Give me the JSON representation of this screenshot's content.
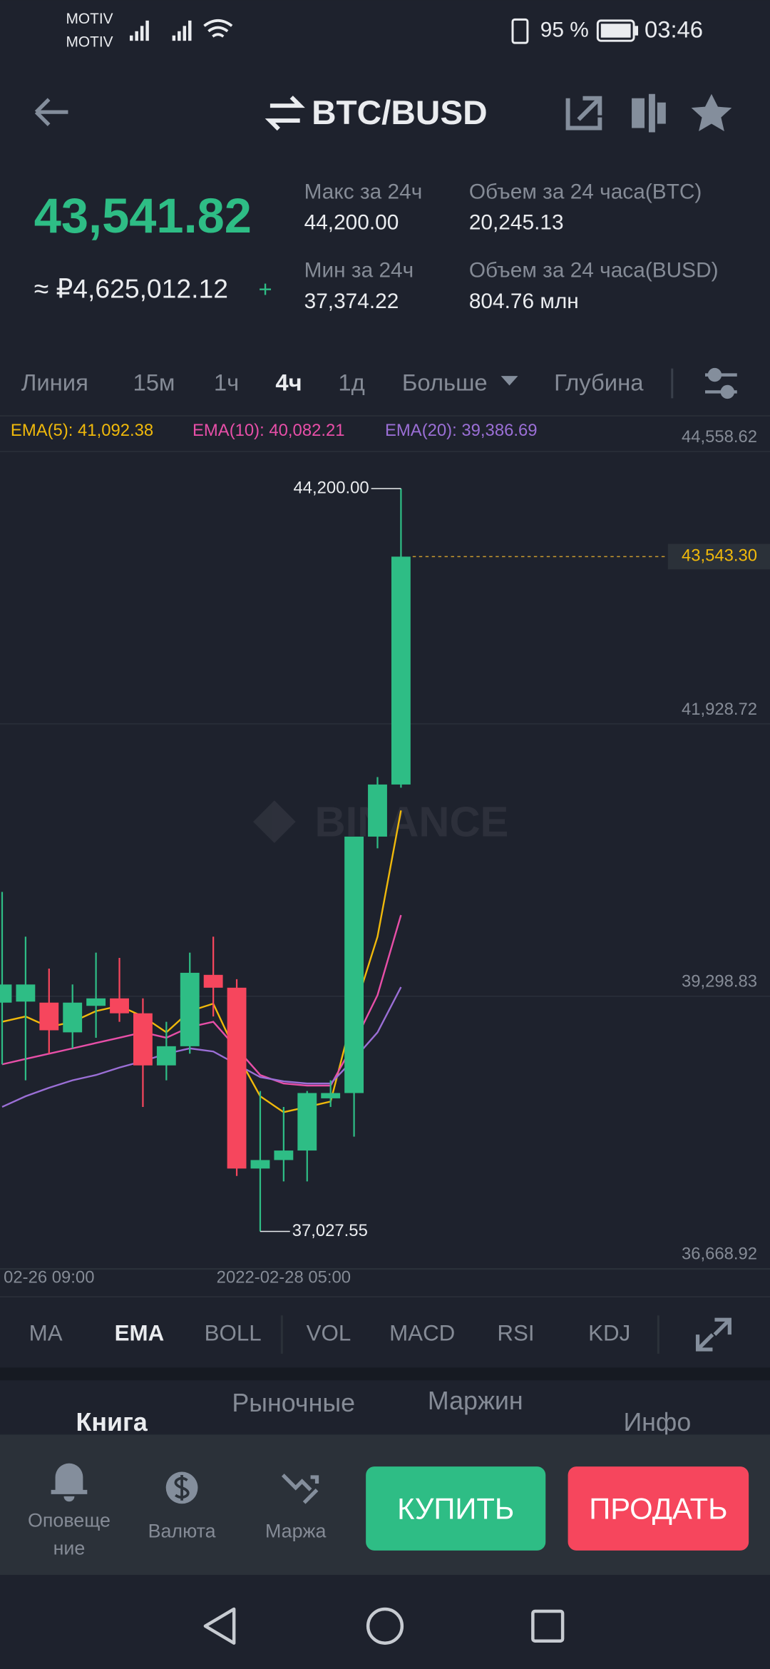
{
  "status_bar": {
    "carrier_1": "MOTIV",
    "carrier_2": "MOTIV",
    "battery": "95 %",
    "time": "03:46"
  },
  "header": {
    "pair": "BTC/BUSD"
  },
  "ticker": {
    "price": "43,541.82",
    "fiat_price": "≈ ₽4,625,012.12",
    "change_sign": "+",
    "stats": [
      {
        "label": "Макс за 24ч",
        "value": "44,200.00"
      },
      {
        "label": "Объем за 24 часа(BTC)",
        "value": "20,245.13"
      },
      {
        "label": "Мин за 24ч",
        "value": "37,374.22"
      },
      {
        "label": "Объем за 24 часа(BUSD)",
        "value": "804.76 млн"
      }
    ]
  },
  "chart_tabs": [
    "Линия",
    "15м",
    "1ч",
    "4ч",
    "1д",
    "Больше",
    "Глубина"
  ],
  "chart_data": {
    "type": "candlestick",
    "watermark": "BINANCE",
    "categories": [
      null,
      null,
      "02-26 09:00",
      null,
      null,
      null,
      null,
      null,
      null,
      null,
      null,
      null,
      "2022-02-28 05:00",
      null,
      null,
      null,
      null,
      null
    ],
    "open": [
      39237,
      39247,
      39237,
      38950,
      39206,
      39278,
      39134,
      38631,
      38816,
      39505,
      39381,
      37635,
      37717,
      37809,
      38313,
      38364,
      40840,
      41343
    ],
    "high": [
      40306,
      39874,
      39566,
      39412,
      39720,
      39669,
      39278,
      39052,
      39720,
      39874,
      39463,
      38384,
      38230,
      38384,
      38487,
      40840,
      41415,
      44200
    ],
    "low": [
      38641,
      38487,
      38744,
      38795,
      38898,
      39052,
      38230,
      38487,
      38744,
      39103,
      37563,
      37027.55,
      37511,
      37511,
      38230,
      37943,
      40727,
      41312
    ],
    "close": [
      39412,
      39412,
      38970,
      39237,
      39278,
      39134,
      38631,
      38816,
      39525,
      39381,
      37635,
      37717,
      37809,
      38364,
      38364,
      40840,
      41343,
      43543.3
    ],
    "up_color": "#2ebd85",
    "down_color": "#f6465d",
    "series": [
      {
        "name": "EMA(5): 41,092.38",
        "color": "#f0b90b",
        "values": [
          39052,
          39103,
          39001,
          39052,
          39155,
          39206,
          39103,
          38950,
          39155,
          39227,
          38744,
          38333,
          38179,
          38230,
          38282,
          39155,
          39874,
          41092.38
        ]
      },
      {
        "name": "EMA(10): 40,082.21",
        "color": "#e84fa8",
        "values": [
          38641,
          38693,
          38744,
          38795,
          38847,
          38898,
          38950,
          38898,
          39001,
          39052,
          38795,
          38538,
          38456,
          38436,
          38436,
          38847,
          39309,
          40082.21
        ]
      },
      {
        "name": "EMA(20): 39,386.69",
        "color": "#9b6fd6",
        "values": [
          38230,
          38333,
          38415,
          38487,
          38538,
          38610,
          38672,
          38744,
          38795,
          38765,
          38641,
          38518,
          38477,
          38456,
          38456,
          38693,
          38950,
          39386.69
        ]
      }
    ],
    "ylim": [
      36668.92,
      44558.62
    ],
    "yticks": [
      {
        "value": 36668.92,
        "label": "36,668.92"
      },
      {
        "value": 39298.83,
        "label": "39,298.83"
      },
      {
        "value": 41928.72,
        "label": "41,928.72"
      },
      {
        "value": 44558.62,
        "label": "44,558.62"
      }
    ],
    "grid": true,
    "last_price": 43543.3,
    "last_price_label": "43,543.30",
    "high_annotation": "44,200.00",
    "low_annotation": "37,027.55"
  },
  "indicators": [
    "MA",
    "EMA",
    "BOLL",
    "VOL",
    "MACD",
    "RSI",
    "KDJ"
  ],
  "sections": [
    "Книга",
    "Рыночные",
    "Маржин",
    "Инфо"
  ],
  "bottom_bar": {
    "alerts": [
      "Оповеще",
      "ние"
    ],
    "currency": "Валюта",
    "margin": "Маржа",
    "buy": "КУПИТЬ",
    "sell": "ПРОДАТЬ"
  }
}
